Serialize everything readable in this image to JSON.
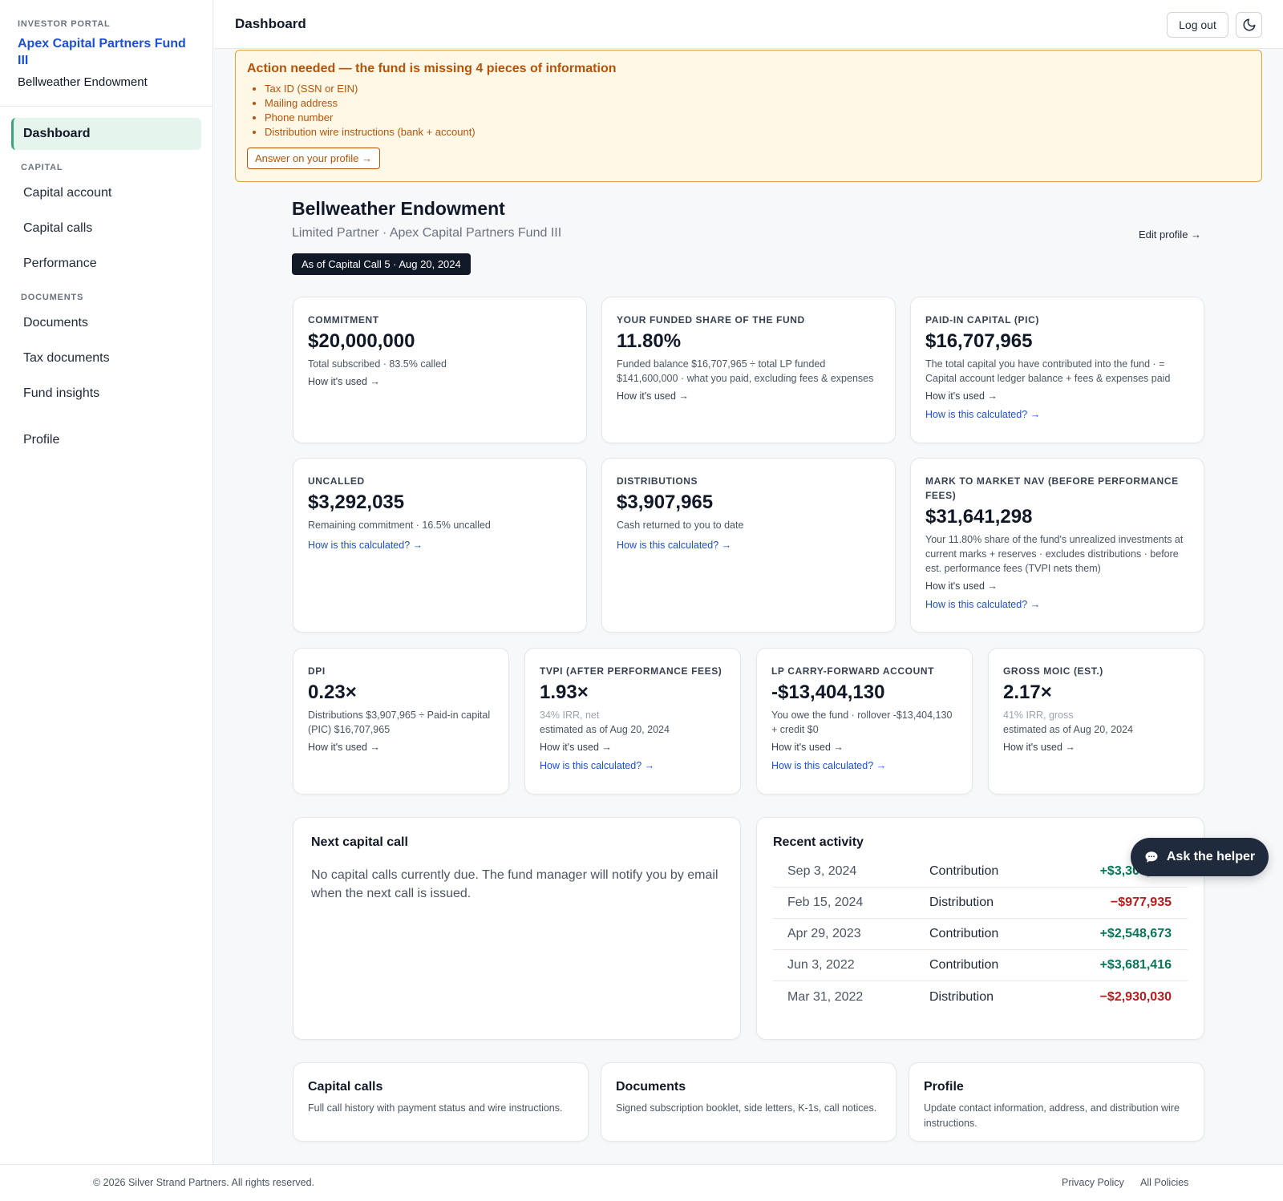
{
  "sidebar": {
    "eyebrow": "INVESTOR PORTAL",
    "fund_name": "Apex Capital Partners Fund III",
    "lp_name": "Bellweather Endowment",
    "nav": {
      "dashboard": "Dashboard",
      "section_capital": "CAPITAL",
      "capital_account": "Capital account",
      "capital_calls": "Capital calls",
      "performance": "Performance",
      "section_documents": "DOCUMENTS",
      "documents": "Documents",
      "tax_documents": "Tax documents",
      "fund_insights": "Fund insights",
      "profile": "Profile"
    }
  },
  "topbar": {
    "title": "Dashboard",
    "logout_label": "Log out",
    "theme_icon": "moon-icon"
  },
  "alert": {
    "title": "Action needed — the fund is missing 4 pieces of information",
    "items": [
      "Tax ID (SSN or EIN)",
      "Mailing address",
      "Phone number",
      "Distribution wire instructions (bank + account)"
    ],
    "button": "Answer on your profile →"
  },
  "header": {
    "name": "Bellweather Endowment",
    "subtitle": "Limited Partner · Apex Capital Partners Fund III",
    "edit_link": "Edit profile →",
    "as_of": "As of Capital Call 5 · Aug 20, 2024"
  },
  "cards": {
    "commitment": {
      "label": "COMMITMENT",
      "value": "$20,000,000",
      "desc": "Total subscribed · 83.5% called",
      "link": "How it's used →"
    },
    "funded_share": {
      "label": "YOUR FUNDED SHARE OF THE FUND",
      "value": "11.80%",
      "desc": "Funded balance $16,707,965 ÷ total LP funded $141,600,000 · what you paid, excluding fees & expenses",
      "link": "How it's used →"
    },
    "pic": {
      "label": "PAID-IN CAPITAL (PIC)",
      "value": "$16,707,965",
      "desc": "The total capital you have contributed into the fund · = Capital account ledger balance + fees & expenses paid",
      "link": "How it's used →",
      "calc": "How is this calculated? →"
    },
    "uncalled": {
      "label": "UNCALLED",
      "value": "$3,292,035",
      "desc": "Remaining commitment · 16.5% uncalled",
      "calc": "How is this calculated? →"
    },
    "distributions": {
      "label": "DISTRIBUTIONS",
      "value": "$3,907,965",
      "desc": "Cash returned to you to date",
      "calc": "How is this calculated? →"
    },
    "nav": {
      "label": "MARK TO MARKET NAV (BEFORE PERFORMANCE FEES)",
      "value": "$31,641,298",
      "desc": "Your 11.80% share of the fund's unrealized investments at current marks + reserves · excludes distributions · before est. performance fees (TVPI nets them)",
      "link": "How it's used →",
      "calc": "How is this calculated? →"
    },
    "dpi": {
      "label": "DPI",
      "value": "0.23×",
      "desc": "Distributions $3,907,965 ÷ Paid-in capital (PIC) $16,707,965",
      "link": "How it's used →"
    },
    "tvpi": {
      "label": "TVPI (AFTER PERFORMANCE FEES)",
      "value": "1.93×",
      "irr": "34% IRR, net",
      "desc": "estimated as of Aug 20, 2024",
      "link": "How it's used →",
      "calc": "How is this calculated? →"
    },
    "carry": {
      "label": "LP CARRY-FORWARD ACCOUNT",
      "value": "-$13,404,130",
      "desc": "You owe the fund · rollover -$13,404,130 + credit $0",
      "link": "How it's used →",
      "calc": "How is this calculated? →"
    },
    "moic": {
      "label": "GROSS MOIC (EST.)",
      "value": "2.17×",
      "irr": "41% IRR, gross",
      "desc": "estimated as of Aug 20, 2024",
      "link": "How it's used →"
    }
  },
  "next_call": {
    "title": "Next capital call",
    "text": "No capital calls currently due. The fund manager will notify you by email when the next call is issued."
  },
  "activity": {
    "title": "Recent activity",
    "rows": [
      {
        "date": "Sep 3, 2024",
        "type": "Contribution",
        "amount": "+$3,303,835"
      },
      {
        "date": "Feb 15, 2024",
        "type": "Distribution",
        "amount": "−$977,935"
      },
      {
        "date": "Apr 29, 2023",
        "type": "Contribution",
        "amount": "+$2,548,673"
      },
      {
        "date": "Jun 3, 2022",
        "type": "Contribution",
        "amount": "+$3,681,416"
      },
      {
        "date": "Mar 31, 2022",
        "type": "Distribution",
        "amount": "−$2,930,030"
      }
    ]
  },
  "helper": {
    "label": "Ask the helper",
    "icon": "chat-bubble-icon"
  },
  "links": {
    "capital_calls": {
      "title": "Capital calls",
      "desc": "Full call history with payment status and wire instructions."
    },
    "documents": {
      "title": "Documents",
      "desc": "Signed subscription booklet, side letters, K-1s, call notices."
    },
    "profile": {
      "title": "Profile",
      "desc": "Update contact information, address, and distribution wire instructions."
    }
  },
  "footer": {
    "copyright": "© 2026 Silver Strand Partners. All rights reserved.",
    "privacy": "Privacy Policy",
    "policies": "All Policies"
  }
}
